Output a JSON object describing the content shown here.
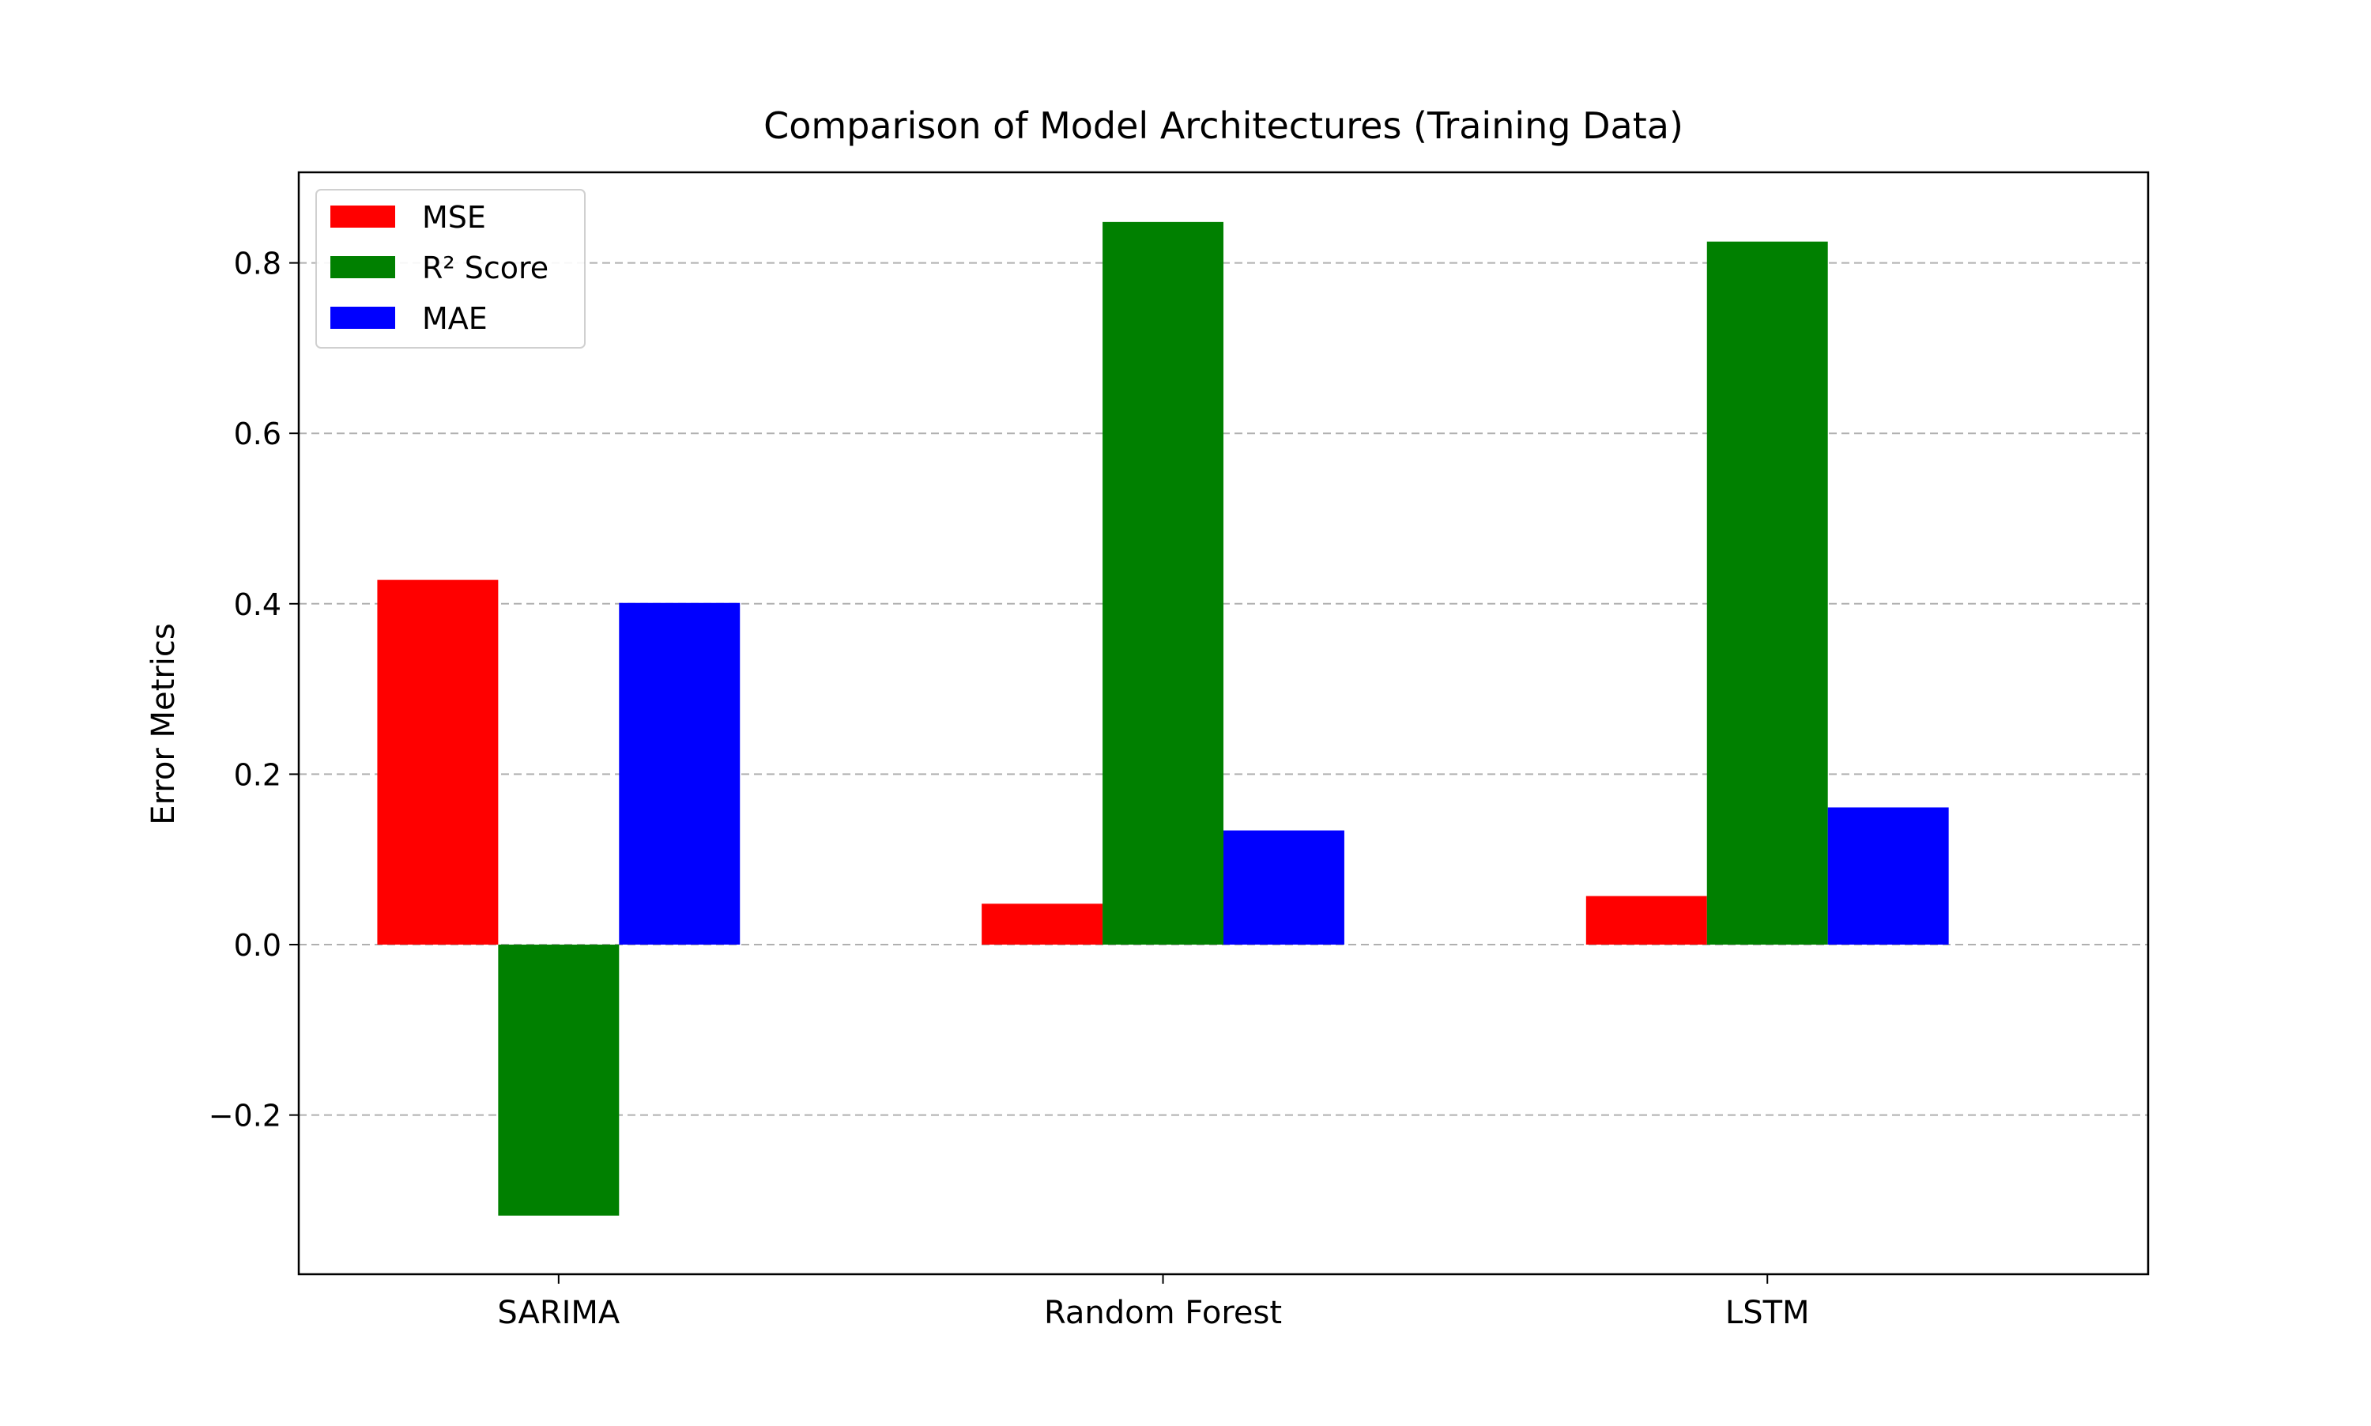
{
  "chart_data": {
    "type": "bar",
    "title": "Comparison of Model Architectures (Training Data)",
    "xlabel": "",
    "ylabel": "Error Metrics",
    "categories": [
      "SARIMA",
      "Random Forest",
      "LSTM"
    ],
    "series": [
      {
        "name": "MSE",
        "values": [
          0.428,
          0.048,
          0.057
        ],
        "color": "#ff0000"
      },
      {
        "name": "R² Score",
        "values": [
          -0.318,
          0.848,
          0.825
        ],
        "color": "#008000"
      },
      {
        "name": "MAE",
        "values": [
          0.401,
          0.134,
          0.161
        ],
        "color": "#0000ff"
      }
    ],
    "ylim": [
      -0.3868,
      0.9063
    ],
    "yticks": [
      -0.2,
      0.0,
      0.2,
      0.4,
      0.6,
      0.8
    ],
    "ytick_labels": [
      "−0.2",
      "0.0",
      "0.2",
      "0.4",
      "0.6",
      "0.8"
    ],
    "grid": {
      "axis": "y",
      "style": "dashed",
      "color": "#b0b0b0"
    },
    "legend": {
      "position": "top-left"
    }
  }
}
